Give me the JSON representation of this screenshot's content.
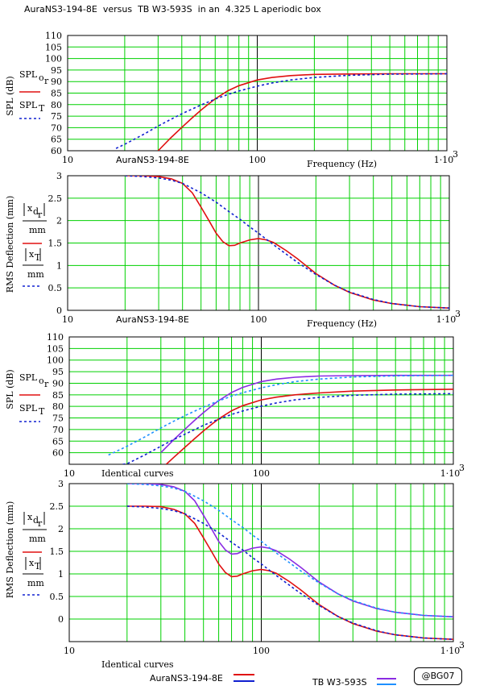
{
  "title": "AuraNS3-194-8E  versus  TB W3-593S  in an  4.325 L aperiodic box",
  "badge": "@BG07",
  "colors": {
    "red": "#e01010",
    "blue": "#1020d0",
    "violet": "#8a2be2",
    "lightblue": "#1e90ff",
    "grid": "#00d000"
  },
  "chart_data": [
    {
      "type": "line",
      "xlabel": "Frequency (Hz)",
      "ylabel": "SPL (dB)",
      "x_scale": "log",
      "xlim": [
        10,
        1000
      ],
      "x_ticks": [
        "10",
        "100",
        "1·10"
      ],
      "x_tick_sup": "3",
      "ylim": [
        60,
        110
      ],
      "y_ticks": [
        "60",
        "65",
        "70",
        "75",
        "80",
        "85",
        "90",
        "95",
        "100",
        "105",
        "110"
      ],
      "caption": "AuraNS3-194-8E",
      "legend": [
        {
          "label": "SPL",
          "sub": "o",
          "subsub": "r"
        },
        {
          "label": "SPL",
          "sub": "T"
        }
      ],
      "series": [
        {
          "color": "red",
          "style": "solid",
          "x": [
            30,
            35,
            40,
            45,
            50,
            55,
            60,
            70,
            80,
            100,
            120,
            150,
            200,
            300,
            500,
            700,
            1000
          ],
          "y": [
            60,
            65.6,
            70.1,
            74,
            77.3,
            80.1,
            82.5,
            86,
            88.2,
            90.7,
            91.8,
            92.6,
            93.1,
            93.3,
            93.4,
            93.4,
            93.4
          ]
        },
        {
          "color": "blue",
          "style": "dash",
          "x": [
            18,
            20,
            25,
            30,
            35,
            40,
            50,
            60,
            70,
            80,
            100,
            120,
            150,
            200,
            300,
            500,
            700,
            1000
          ],
          "y": [
            61,
            62.8,
            67,
            70.7,
            73.6,
            76,
            79.7,
            82.4,
            84.4,
            85.9,
            88,
            89.4,
            90.7,
            91.8,
            92.7,
            93.2,
            93.3,
            93.4
          ]
        }
      ]
    },
    {
      "type": "line",
      "xlabel": "Frequency (Hz)",
      "ylabel": "RMS Deflection (mm)",
      "x_scale": "log",
      "xlim": [
        10,
        1000
      ],
      "x_ticks": [
        "10",
        "100",
        "1·10"
      ],
      "x_tick_sup": "3",
      "ylim": [
        0,
        3
      ],
      "y_ticks": [
        "0",
        "0.5",
        "1",
        "1.5",
        "2",
        "2.5",
        "3"
      ],
      "caption": "AuraNS3-194-8E",
      "series": [
        {
          "color": "red",
          "style": "solid",
          "x": [
            20,
            25,
            30,
            35,
            40,
            45,
            50,
            55,
            60,
            65,
            70,
            75,
            80,
            90,
            100,
            110,
            120,
            140,
            160,
            200,
            250,
            300,
            400,
            500,
            700,
            1000
          ],
          "y": [
            3,
            3,
            2.98,
            2.93,
            2.83,
            2.62,
            2.3,
            2,
            1.72,
            1.53,
            1.44,
            1.45,
            1.5,
            1.57,
            1.6,
            1.57,
            1.51,
            1.33,
            1.15,
            0.82,
            0.56,
            0.4,
            0.23,
            0.15,
            0.08,
            0.05
          ]
        },
        {
          "color": "blue",
          "style": "dash",
          "x": [
            20,
            25,
            30,
            35,
            40,
            50,
            60,
            70,
            80,
            90,
            100,
            120,
            140,
            160,
            200,
            250,
            300,
            400,
            500,
            700,
            1000
          ],
          "y": [
            3,
            2.98,
            2.95,
            2.9,
            2.83,
            2.62,
            2.41,
            2.2,
            2.03,
            1.86,
            1.72,
            1.46,
            1.25,
            1.07,
            0.8,
            0.56,
            0.41,
            0.24,
            0.15,
            0.08,
            0.05
          ]
        }
      ]
    },
    {
      "type": "line",
      "ylabel": "SPL (dB)",
      "x_scale": "log",
      "xlim": [
        10,
        1000
      ],
      "x_ticks": [
        "10",
        "100",
        "1·10"
      ],
      "x_tick_sup": "3",
      "ylim": [
        55,
        110
      ],
      "y_ticks": [
        "60",
        "65",
        "70",
        "75",
        "80",
        "85",
        "90",
        "95",
        "100",
        "105",
        "110"
      ],
      "caption": "Identical curves",
      "legend": [
        {
          "label": "SPL",
          "sub": "o",
          "subsub": "r"
        },
        {
          "label": "SPL",
          "sub": "T"
        }
      ],
      "series": [
        {
          "color": "red",
          "style": "solid",
          "x": [
            32,
            35,
            40,
            45,
            50,
            55,
            60,
            70,
            80,
            100,
            120,
            150,
            200,
            300,
            500,
            1000
          ],
          "y": [
            55,
            58,
            62.3,
            66.1,
            69.4,
            72.2,
            74.6,
            78.1,
            80.3,
            82.8,
            84,
            85,
            85.8,
            86.6,
            87.1,
            87.4
          ]
        },
        {
          "color": "violet",
          "style": "solid",
          "x": [
            30,
            35,
            40,
            45,
            50,
            55,
            60,
            70,
            80,
            100,
            120,
            150,
            200,
            300,
            500,
            700,
            1000
          ],
          "y": [
            60,
            65.6,
            70.1,
            74,
            77.3,
            80.1,
            82.5,
            86,
            88.2,
            90.7,
            91.8,
            92.6,
            93.1,
            93.3,
            93.4,
            93.4,
            93.4
          ]
        },
        {
          "color": "blue",
          "style": "dash",
          "x": [
            19,
            20,
            25,
            30,
            35,
            40,
            50,
            60,
            70,
            80,
            100,
            120,
            150,
            200,
            300,
            500,
            1000
          ],
          "y": [
            55,
            55.2,
            59.2,
            62.8,
            65.7,
            68,
            71.8,
            74.5,
            76.5,
            78,
            80.1,
            81.5,
            82.8,
            83.9,
            84.8,
            85.3,
            85.5
          ]
        },
        {
          "color": "lightblue",
          "style": "dash",
          "x": [
            16,
            18,
            20,
            25,
            30,
            35,
            40,
            50,
            60,
            70,
            80,
            100,
            120,
            150,
            200,
            300,
            500,
            700,
            1000
          ],
          "y": [
            59,
            61,
            62.8,
            67,
            70.7,
            73.6,
            76,
            79.7,
            82.4,
            84.4,
            85.9,
            88,
            89.4,
            90.7,
            91.8,
            92.7,
            93.2,
            93.3,
            93.4
          ]
        }
      ]
    },
    {
      "type": "line",
      "ylabel": "RMS Deflection (mm)",
      "x_scale": "log",
      "xlim": [
        10,
        1000
      ],
      "x_ticks": [
        "10",
        "100",
        "1·10"
      ],
      "x_tick_sup": "3",
      "ylim": [
        -0.5,
        3
      ],
      "y_ticks": [
        "0",
        "0.5",
        "1",
        "1.5",
        "2",
        "2.5",
        "3"
      ],
      "caption": "Identical curves",
      "series": [
        {
          "color": "red",
          "style": "solid",
          "x": [
            20,
            25,
            30,
            35,
            40,
            45,
            50,
            55,
            60,
            65,
            70,
            75,
            80,
            90,
            100,
            110,
            120,
            140,
            160,
            200,
            250,
            300,
            400,
            500,
            700,
            1000
          ],
          "y": [
            2.5,
            2.5,
            2.49,
            2.43,
            2.33,
            2.12,
            1.8,
            1.5,
            1.22,
            1.03,
            0.94,
            0.95,
            1,
            1.07,
            1.1,
            1.07,
            1.01,
            0.83,
            0.65,
            0.32,
            0.06,
            -0.1,
            -0.27,
            -0.35,
            -0.42,
            -0.45
          ]
        },
        {
          "color": "violet",
          "style": "solid",
          "x": [
            20,
            25,
            30,
            35,
            40,
            45,
            50,
            55,
            60,
            65,
            70,
            75,
            80,
            90,
            100,
            110,
            120,
            140,
            160,
            200,
            250,
            300,
            400,
            500,
            700,
            1000
          ],
          "y": [
            3,
            3,
            2.98,
            2.93,
            2.83,
            2.62,
            2.3,
            2,
            1.72,
            1.53,
            1.44,
            1.45,
            1.5,
            1.57,
            1.6,
            1.57,
            1.51,
            1.33,
            1.15,
            0.82,
            0.56,
            0.4,
            0.23,
            0.15,
            0.08,
            0.05
          ]
        },
        {
          "color": "blue",
          "style": "dash",
          "x": [
            20,
            25,
            30,
            35,
            40,
            50,
            60,
            70,
            80,
            90,
            100,
            120,
            140,
            160,
            200,
            250,
            300,
            400,
            500,
            700,
            1000
          ],
          "y": [
            2.5,
            2.48,
            2.45,
            2.4,
            2.33,
            2.12,
            1.91,
            1.7,
            1.53,
            1.36,
            1.22,
            0.96,
            0.75,
            0.57,
            0.3,
            0.06,
            -0.09,
            -0.26,
            -0.35,
            -0.42,
            -0.45
          ]
        },
        {
          "color": "lightblue",
          "style": "dash",
          "x": [
            20,
            25,
            30,
            35,
            40,
            50,
            60,
            70,
            80,
            90,
            100,
            120,
            140,
            160,
            200,
            250,
            300,
            400,
            500,
            700,
            1000
          ],
          "y": [
            3,
            2.98,
            2.95,
            2.9,
            2.83,
            2.62,
            2.41,
            2.2,
            2.03,
            1.86,
            1.72,
            1.46,
            1.25,
            1.07,
            0.8,
            0.56,
            0.41,
            0.24,
            0.15,
            0.08,
            0.05
          ]
        }
      ]
    }
  ],
  "bottom_legend": [
    {
      "label": "AuraNS3-194-8E",
      "colors": [
        "red",
        "blue"
      ]
    },
    {
      "label": "TB W3-593S",
      "colors": [
        "violet",
        "lightblue"
      ]
    }
  ]
}
